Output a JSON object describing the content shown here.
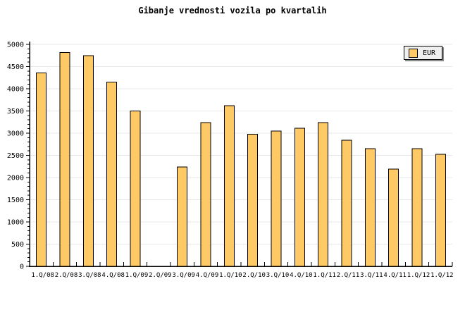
{
  "title": "Gibanje vrednosti vozila po kvartalih",
  "legend": {
    "label": "EUR",
    "swatch_color": "#FFC966",
    "position": "top-right"
  },
  "chart_data": {
    "type": "bar",
    "title": "Gibanje vrednosti vozila po kvartalih",
    "categories": [
      "1.Q/08",
      "2.Q/08",
      "3.Q/08",
      "4.Q/08",
      "1.Q/09",
      "2.Q/09",
      "3.Q/09",
      "4.Q/09",
      "1.Q/10",
      "2.Q/10",
      "3.Q/10",
      "4.Q/10",
      "1.Q/11",
      "2.Q/11",
      "3.Q/11",
      "4.Q/11",
      "1.Q/12",
      "1.Q/12"
    ],
    "series": [
      {
        "name": "EUR",
        "values": [
          4360,
          4820,
          4750,
          4150,
          3500,
          null,
          2240,
          3240,
          3620,
          2980,
          3050,
          3110,
          3240,
          2840,
          2650,
          2190,
          2650,
          2520
        ]
      }
    ],
    "xlabel": "",
    "ylabel": "",
    "ylim": [
      0,
      5000
    ],
    "y_major_step": 500,
    "y_minor_step": 100,
    "y_tick_labels": [
      "0",
      "500",
      "1000",
      "1500",
      "2000",
      "2500",
      "3000",
      "3500",
      "4000",
      "4500",
      "5000"
    ],
    "grid": "horizontal-major",
    "legend_position": "top-right",
    "colors": {
      "bar_fill": "#FFC966",
      "bar_border": "#000000",
      "grid_line": "#e8e8e8",
      "axis": "#000000",
      "text": "#000000",
      "background": "#ffffff",
      "legend_background": "#efefef",
      "legend_shadow": "#8c8c8c"
    }
  }
}
